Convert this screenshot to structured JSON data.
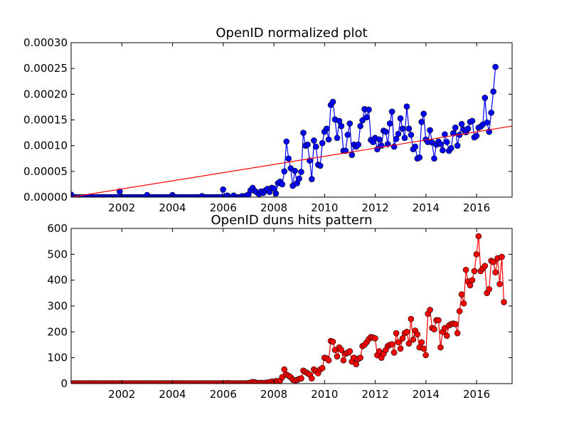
{
  "chart_data": [
    {
      "type": "line",
      "title": "OpenID normalized plot",
      "xlabel": "",
      "ylabel": "",
      "xlim": [
        2000.0,
        2017.4
      ],
      "ylim": [
        0,
        0.0003
      ],
      "grid": false,
      "x_ticks": [
        2002,
        2004,
        2006,
        2008,
        2010,
        2012,
        2014,
        2016
      ],
      "x_tick_labels": [
        "2002",
        "2004",
        "2006",
        "2008",
        "2010",
        "2012",
        "2014",
        "2016"
      ],
      "y_ticks": [
        0,
        5e-05,
        0.0001,
        0.00015,
        0.0002,
        0.00025,
        0.0003
      ],
      "y_tick_labels": [
        "0.00000",
        "0.00005",
        "0.00010",
        "0.00015",
        "0.00020",
        "0.00025",
        "0.00030"
      ],
      "series": [
        {
          "color": "#0000ff",
          "marker": "circle",
          "x_start": 2000.0,
          "x_step": 0.0833,
          "values": [
            5e-06,
            0,
            0,
            0,
            0,
            0,
            0,
            0,
            0,
            0,
            0,
            0,
            0,
            0,
            0,
            0,
            0,
            0,
            0,
            0,
            0,
            0,
            0,
            1.1e-05,
            0,
            0,
            0,
            0,
            0,
            0,
            0,
            0,
            0,
            0,
            0,
            0,
            4e-06,
            0,
            0,
            0,
            0,
            0,
            0,
            0,
            0,
            0,
            0,
            0,
            4e-06,
            0,
            0,
            0,
            0,
            0,
            0,
            0,
            0,
            0,
            0,
            0,
            0,
            0,
            2e-06,
            0,
            0,
            0,
            0,
            0,
            0,
            0,
            0,
            0,
            1.5e-05,
            0,
            3e-06,
            0,
            0,
            3e-06,
            0,
            0,
            0,
            2e-06,
            0,
            3e-06,
            5e-06,
            1.3e-05,
            1.8e-05,
            1.2e-05,
            9e-06,
            6e-06,
            1.1e-05,
            8e-06,
            1.3e-05,
            1.6e-05,
            1e-05,
            1.8e-05,
            1.7e-05,
            7e-06,
            2.7e-05,
            3e-05,
            2.5e-05,
            5e-05,
            0.000108,
            7.5e-05,
            5.6e-05,
            2.2e-05,
            5.1e-05,
            2.7e-05,
            3.6e-05,
            4.9e-05,
            0.000125,
            0.0001,
            0.000102,
            7.1e-05,
            3.5e-05,
            0.00011,
            9.8e-05,
            6.3e-05,
            6.1e-05,
            0.000105,
            0.000127,
            0.000133,
            0.000112,
            0.000179,
            0.000185,
            0.000151,
            0.000115,
            0.000148,
            0.000138,
            9e-05,
            9e-05,
            0.000121,
            0.000143,
            8.2e-05,
            0.000102,
            9.8e-05,
            0.000102,
            0.000138,
            0.000149,
            0.000171,
            0.000155,
            0.00017,
            0.000111,
            0.000107,
            0.000115,
            9.3e-05,
            0.000112,
            0.0001,
            0.000129,
            0.000127,
            0.000103,
            0.000143,
            0.000166,
            9.8e-05,
            0.000113,
            0.000123,
            0.000153,
            0.000133,
            0.000115,
            0.000176,
            0.000133,
            0.000121,
            9.3e-05,
            9.8e-05,
            7.5e-05,
            7.7e-05,
            0.000146,
            0.000162,
            0.000112,
            0.000107,
            0.00013,
            0.000106,
            7.5e-05,
            0.000102,
            0.000108,
            0.000103,
            9.1e-05,
            0.000122,
            0.000107,
            9e-05,
            9.5e-05,
            0.000124,
            0.000135,
            0.0001,
            0.000121,
            0.000142,
            0.000131,
            0.000126,
            0.000133,
            0.000146,
            0.000148,
            0.000116,
            0.000119,
            0.000135,
            0.000137,
            0.000141,
            0.000193,
            0.000145,
            0.000127,
            0.000164,
            0.000205,
            0.000253
          ]
        },
        {
          "color": "#ff0000",
          "marker": "none",
          "kind": "trend",
          "x": [
            2000.0,
            2017.4
          ],
          "values": [
            0.0,
            0.000138
          ]
        }
      ]
    },
    {
      "type": "line",
      "title": "OpenID duns hits pattern",
      "xlabel": "",
      "ylabel": "",
      "xlim": [
        2000.0,
        2017.4
      ],
      "ylim": [
        0,
        600
      ],
      "grid": false,
      "x_ticks": [
        2002,
        2004,
        2006,
        2008,
        2010,
        2012,
        2014,
        2016
      ],
      "x_tick_labels": [
        "2002",
        "2004",
        "2006",
        "2008",
        "2010",
        "2012",
        "2014",
        "2016"
      ],
      "y_ticks": [
        0,
        100,
        200,
        300,
        400,
        500,
        600
      ],
      "y_tick_labels": [
        "0",
        "100",
        "200",
        "300",
        "400",
        "500",
        "600"
      ],
      "series": [
        {
          "color": "#ff0000",
          "marker": "circle",
          "x_start": 2000.0,
          "x_step": 0.0833,
          "values": [
            1,
            1,
            1,
            1,
            1,
            1,
            1,
            1,
            1,
            1,
            1,
            1,
            1,
            1,
            1,
            1,
            1,
            1,
            1,
            1,
            1,
            1,
            1,
            1,
            1,
            1,
            1,
            1,
            1,
            1,
            1,
            1,
            1,
            1,
            1,
            1,
            1,
            1,
            1,
            1,
            1,
            1,
            1,
            1,
            1,
            1,
            1,
            1,
            1,
            1,
            1,
            1,
            1,
            1,
            1,
            1,
            1,
            1,
            1,
            1,
            1,
            1,
            1,
            1,
            1,
            1,
            1,
            1,
            1,
            1,
            1,
            1,
            1,
            1,
            2,
            1,
            1,
            1,
            1,
            1,
            1,
            1,
            1,
            1,
            2,
            4,
            6,
            5,
            3,
            2,
            3,
            2,
            3,
            4,
            5,
            8,
            3,
            10,
            8,
            12,
            25,
            55,
            35,
            30,
            25,
            15,
            12,
            14,
            18,
            20,
            50,
            45,
            40,
            35,
            20,
            55,
            48,
            40,
            55,
            60,
            100,
            98,
            90,
            165,
            162,
            130,
            105,
            140,
            130,
            90,
            115,
            120,
            125,
            85,
            100,
            75,
            95,
            100,
            145,
            150,
            160,
            172,
            180,
            178,
            175,
            110,
            125,
            100,
            115,
            130,
            145,
            150,
            152,
            120,
            195,
            160,
            135,
            175,
            195,
            200,
            155,
            250,
            170,
            205,
            190,
            140,
            160,
            135,
            110,
            270,
            285,
            215,
            210,
            245,
            245,
            140,
            200,
            215,
            185,
            225,
            230,
            232,
            230,
            195,
            280,
            345,
            310,
            440,
            395,
            380,
            400,
            435,
            500,
            570,
            435,
            445,
            455,
            350,
            365,
            475,
            470,
            430,
            485,
            385,
            490,
            315
          ]
        }
      ]
    }
  ]
}
